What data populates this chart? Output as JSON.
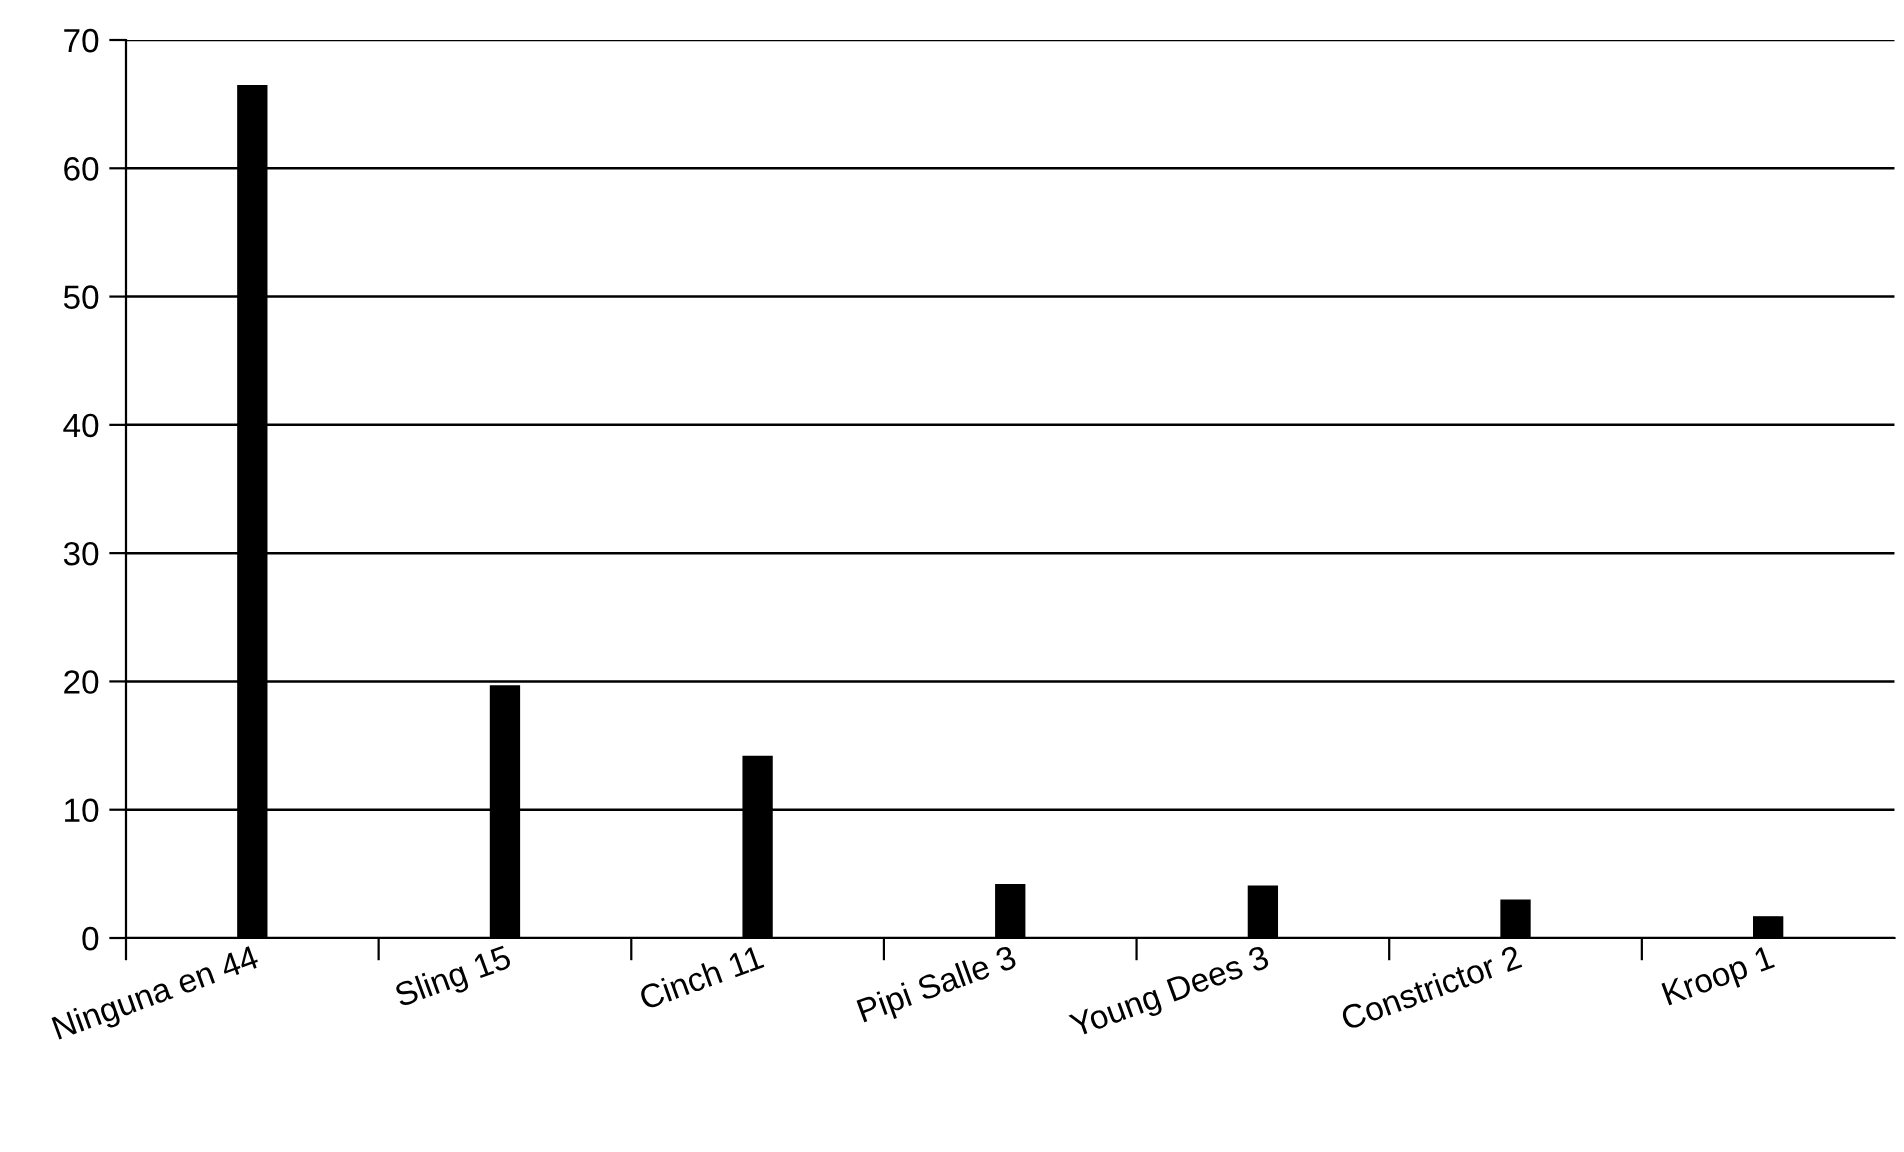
{
  "chart_data": {
    "type": "bar",
    "categories": [
      "Ninguna en 44",
      "Sling 15",
      "Cinch 11",
      "Pipi Salle 3",
      "Young Dees 3",
      "Constrictor 2",
      "Kroop 1"
    ],
    "values": [
      66.5,
      19.7,
      14.2,
      4.2,
      4.1,
      3.0,
      1.7
    ],
    "color": "#000000",
    "ylim": [
      0,
      70
    ],
    "yticks": [
      0,
      10,
      20,
      30,
      40,
      50,
      60,
      70
    ],
    "grid": "y"
  }
}
